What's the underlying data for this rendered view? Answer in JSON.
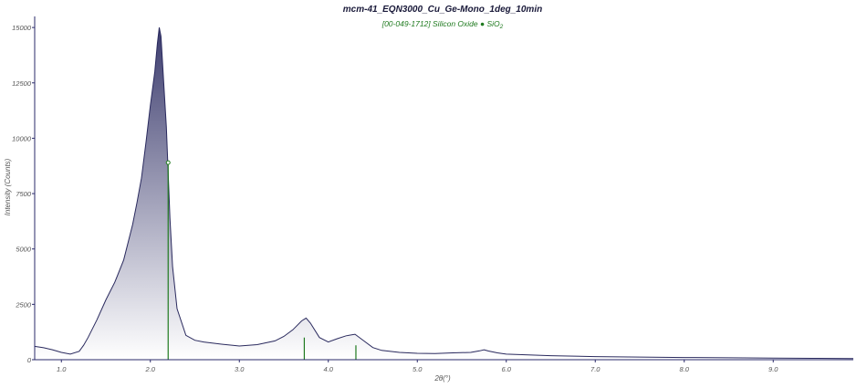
{
  "chart_data": {
    "type": "area",
    "title": "mcm-41_EQN3000_Cu_Ge-Mono_1deg_10min",
    "subtitle": "[00-049-1712] Silicon Oxide ● SiO",
    "subtitle_subscript": "2",
    "xlabel": "2θ(°)",
    "ylabel": "Intensity (Counts)",
    "xlim": [
      0.7,
      9.9
    ],
    "ylim": [
      0,
      15500
    ],
    "x_ticks": [
      "1.0",
      "2.0",
      "3.0",
      "4.0",
      "5.0",
      "6.0",
      "7.0",
      "8.0",
      "9.0"
    ],
    "y_ticks": [
      "0",
      "2500",
      "5000",
      "7500",
      "10000",
      "12500",
      "15000"
    ],
    "grid": false,
    "colors": {
      "pattern_line": "#2a2a5e",
      "fill_top": "#3c3c6e",
      "fill_bottom": "#ffffff",
      "reference": "#1f7a1f",
      "axis": "#2a2a6a"
    },
    "series": [
      {
        "x": [
          0.7,
          0.8,
          0.9,
          1.0,
          1.1,
          1.2,
          1.25,
          1.3,
          1.4,
          1.5,
          1.6,
          1.7,
          1.8,
          1.85,
          1.9,
          1.95,
          2.0,
          2.05,
          2.08,
          2.1,
          2.12,
          2.15,
          2.18,
          2.2,
          2.22,
          2.25,
          2.3,
          2.4,
          2.5,
          2.6,
          2.8,
          3.0,
          3.2,
          3.4,
          3.5,
          3.6,
          3.7,
          3.75,
          3.8,
          3.9,
          4.0,
          4.1,
          4.2,
          4.3,
          4.4,
          4.5,
          4.6,
          4.8,
          5.0,
          5.2,
          5.4,
          5.6,
          5.7,
          5.75,
          5.8,
          5.9,
          6.0,
          6.5,
          7.0,
          7.5,
          8.0,
          8.5,
          9.0,
          9.5,
          9.9
        ],
        "y": [
          600,
          540,
          450,
          330,
          250,
          380,
          650,
          1000,
          1800,
          2700,
          3500,
          4500,
          6100,
          7100,
          8200,
          9800,
          11500,
          13000,
          14300,
          15000,
          14600,
          12500,
          10500,
          8400,
          6400,
          4200,
          2300,
          1100,
          880,
          800,
          700,
          620,
          680,
          850,
          1050,
          1350,
          1750,
          1880,
          1650,
          1000,
          800,
          950,
          1080,
          1150,
          850,
          550,
          420,
          330,
          290,
          280,
          310,
          330,
          400,
          450,
          390,
          310,
          250,
          180,
          140,
          120,
          100,
          85,
          70,
          60,
          50
        ]
      }
    ],
    "reference_lines": [
      {
        "x": 2.2,
        "y": 8900
      },
      {
        "x": 3.73,
        "y": 1000
      },
      {
        "x": 4.31,
        "y": 650
      }
    ]
  }
}
